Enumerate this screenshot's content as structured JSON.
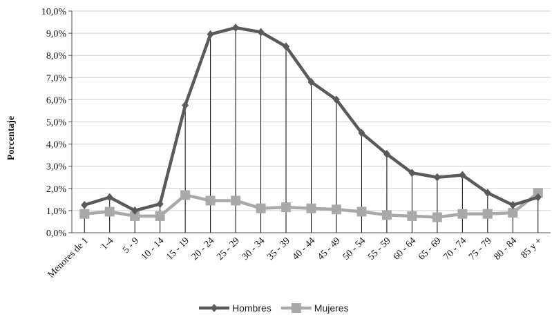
{
  "chart_data": {
    "type": "line",
    "ylabel": "Porcentaje",
    "xlabel": "",
    "title": "",
    "ylim": [
      0,
      10
    ],
    "yticks": [
      "0,0%",
      "1,0%",
      "2,0%",
      "3,0%",
      "4,0%",
      "5,0%",
      "6,0%",
      "7,0%",
      "8,0%",
      "9,0%",
      "10,0%"
    ],
    "grid": "horizontal",
    "drop_lines": true,
    "legend_position": "bottom",
    "categories": [
      "Menores de 1",
      "1-4",
      "5 - 9",
      "10 - 14",
      "15 - 19",
      "20 - 24",
      "25 - 29",
      "30 - 34",
      "35 - 39",
      "40 - 44",
      "45 - 49",
      "50 - 54",
      "55 - 59",
      "60 - 64",
      "65 - 69",
      "70 - 74",
      "75 - 79",
      "80 - 84",
      "85 y +"
    ],
    "series": [
      {
        "name": "Hombres",
        "color": "#5a5a5a",
        "marker": "diamond",
        "values": [
          1.25,
          1.6,
          1.0,
          1.3,
          5.75,
          8.95,
          9.25,
          9.05,
          8.4,
          6.8,
          6.0,
          4.5,
          3.55,
          2.7,
          2.5,
          2.6,
          1.8,
          1.25,
          1.6
        ]
      },
      {
        "name": "Mujeres",
        "color": "#a9a9a9",
        "marker": "square",
        "values": [
          0.85,
          0.95,
          0.75,
          0.75,
          1.7,
          1.45,
          1.45,
          1.1,
          1.15,
          1.1,
          1.05,
          0.95,
          0.8,
          0.75,
          0.7,
          0.85,
          0.85,
          0.9,
          1.8
        ]
      }
    ]
  }
}
